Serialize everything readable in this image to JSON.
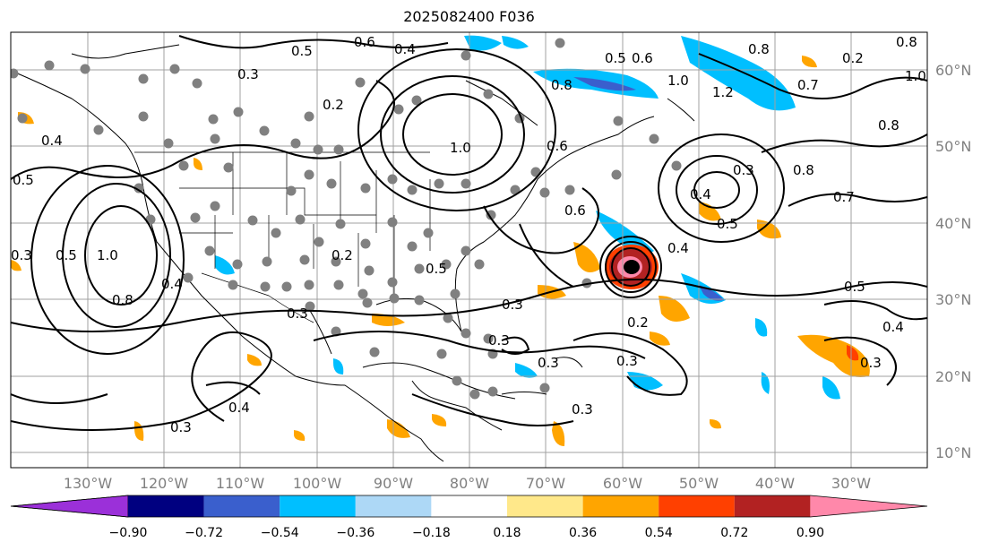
{
  "title": "2025082400 F036",
  "lat_labels": [
    "60°N",
    "50°N",
    "40°N",
    "30°N",
    "20°N",
    "10°N"
  ],
  "lon_labels": [
    "130°W",
    "120°W",
    "110°W",
    "100°W",
    "90°W",
    "80°W",
    "70°W",
    "60°W",
    "50°W",
    "40°W",
    "30°W"
  ],
  "colorbar": {
    "ticks": [
      "−0.90",
      "−0.72",
      "−0.54",
      "−0.36",
      "−0.18",
      "0.18",
      "0.36",
      "0.54",
      "0.72",
      "0.90"
    ],
    "colors": [
      "#9b30d9",
      "#000080",
      "#3a5fcd",
      "#00bfff",
      "#add8f6",
      "#ffffff",
      "#ffe88a",
      "#ffa500",
      "#ff4000",
      "#b22222",
      "#ff88aa"
    ]
  },
  "contour_labels": [
    "0.5",
    "0.6",
    "0.4",
    "0.3",
    "0.2",
    "0.8",
    "0.6",
    "0.5",
    "0.7",
    "0.8",
    "1.2",
    "1.0",
    "0.6",
    "0.4",
    "0.5",
    "0.7",
    "1.0",
    "0.4",
    "0.5",
    "0.3",
    "0.2",
    "0.8",
    "0.4",
    "0.3",
    "0.4",
    "0.5",
    "0.3",
    "0.2",
    "0.3",
    "0.3",
    "0.3",
    "0.3",
    "0.8",
    "0.5",
    "0.3",
    "0.4",
    "0.3",
    "1.0",
    "0.5",
    "0.8",
    "0.4",
    "0.2",
    "0.3",
    "1.0",
    "0.8",
    "0.6"
  ]
}
